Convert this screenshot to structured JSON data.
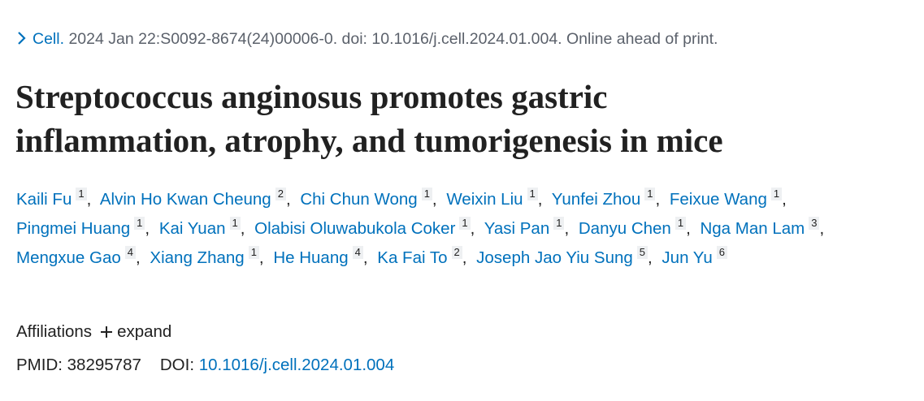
{
  "citation": {
    "journal": "Cell.",
    "details": "2024 Jan 22:S0092-8674(24)00006-0. doi: 10.1016/j.cell.2024.01.004. Online ahead of print."
  },
  "title": "Streptococcus anginosus promotes gastric inflammation, atrophy, and tumorigenesis in mice",
  "authors": [
    {
      "name": "Kaili Fu",
      "affiliation": "1",
      "separator": ","
    },
    {
      "name": "Alvin Ho Kwan Cheung",
      "affiliation": "2",
      "separator": ","
    },
    {
      "name": "Chi Chun Wong",
      "affiliation": "1",
      "separator": ","
    },
    {
      "name": "Weixin Liu",
      "affiliation": "1",
      "separator": ","
    },
    {
      "name": "Yunfei Zhou",
      "affiliation": "1",
      "separator": ","
    },
    {
      "name": "Feixue Wang",
      "affiliation": "1",
      "separator": ","
    },
    {
      "name": "Pingmei Huang",
      "affiliation": "1",
      "separator": ","
    },
    {
      "name": "Kai Yuan",
      "affiliation": "1",
      "separator": ","
    },
    {
      "name": "Olabisi Oluwabukola Coker",
      "affiliation": "1",
      "separator": ","
    },
    {
      "name": "Yasi Pan",
      "affiliation": "1",
      "separator": ","
    },
    {
      "name": "Danyu Chen",
      "affiliation": "1",
      "separator": ","
    },
    {
      "name": "Nga Man Lam",
      "affiliation": "3",
      "separator": ","
    },
    {
      "name": "Mengxue Gao",
      "affiliation": "4",
      "separator": ","
    },
    {
      "name": "Xiang Zhang",
      "affiliation": "1",
      "separator": ","
    },
    {
      "name": "He Huang",
      "affiliation": "4",
      "separator": ","
    },
    {
      "name": "Ka Fai To",
      "affiliation": "2",
      "separator": ","
    },
    {
      "name": "Joseph Jao Yiu Sung",
      "affiliation": "5",
      "separator": ","
    },
    {
      "name": "Jun Yu",
      "affiliation": "6"
    }
  ],
  "affiliations": {
    "label": "Affiliations",
    "toggle": "expand"
  },
  "identifiers": {
    "pmid_label": "PMID:",
    "pmid": "38295787",
    "doi_label": "DOI:",
    "doi": "10.1016/j.cell.2024.01.004"
  }
}
